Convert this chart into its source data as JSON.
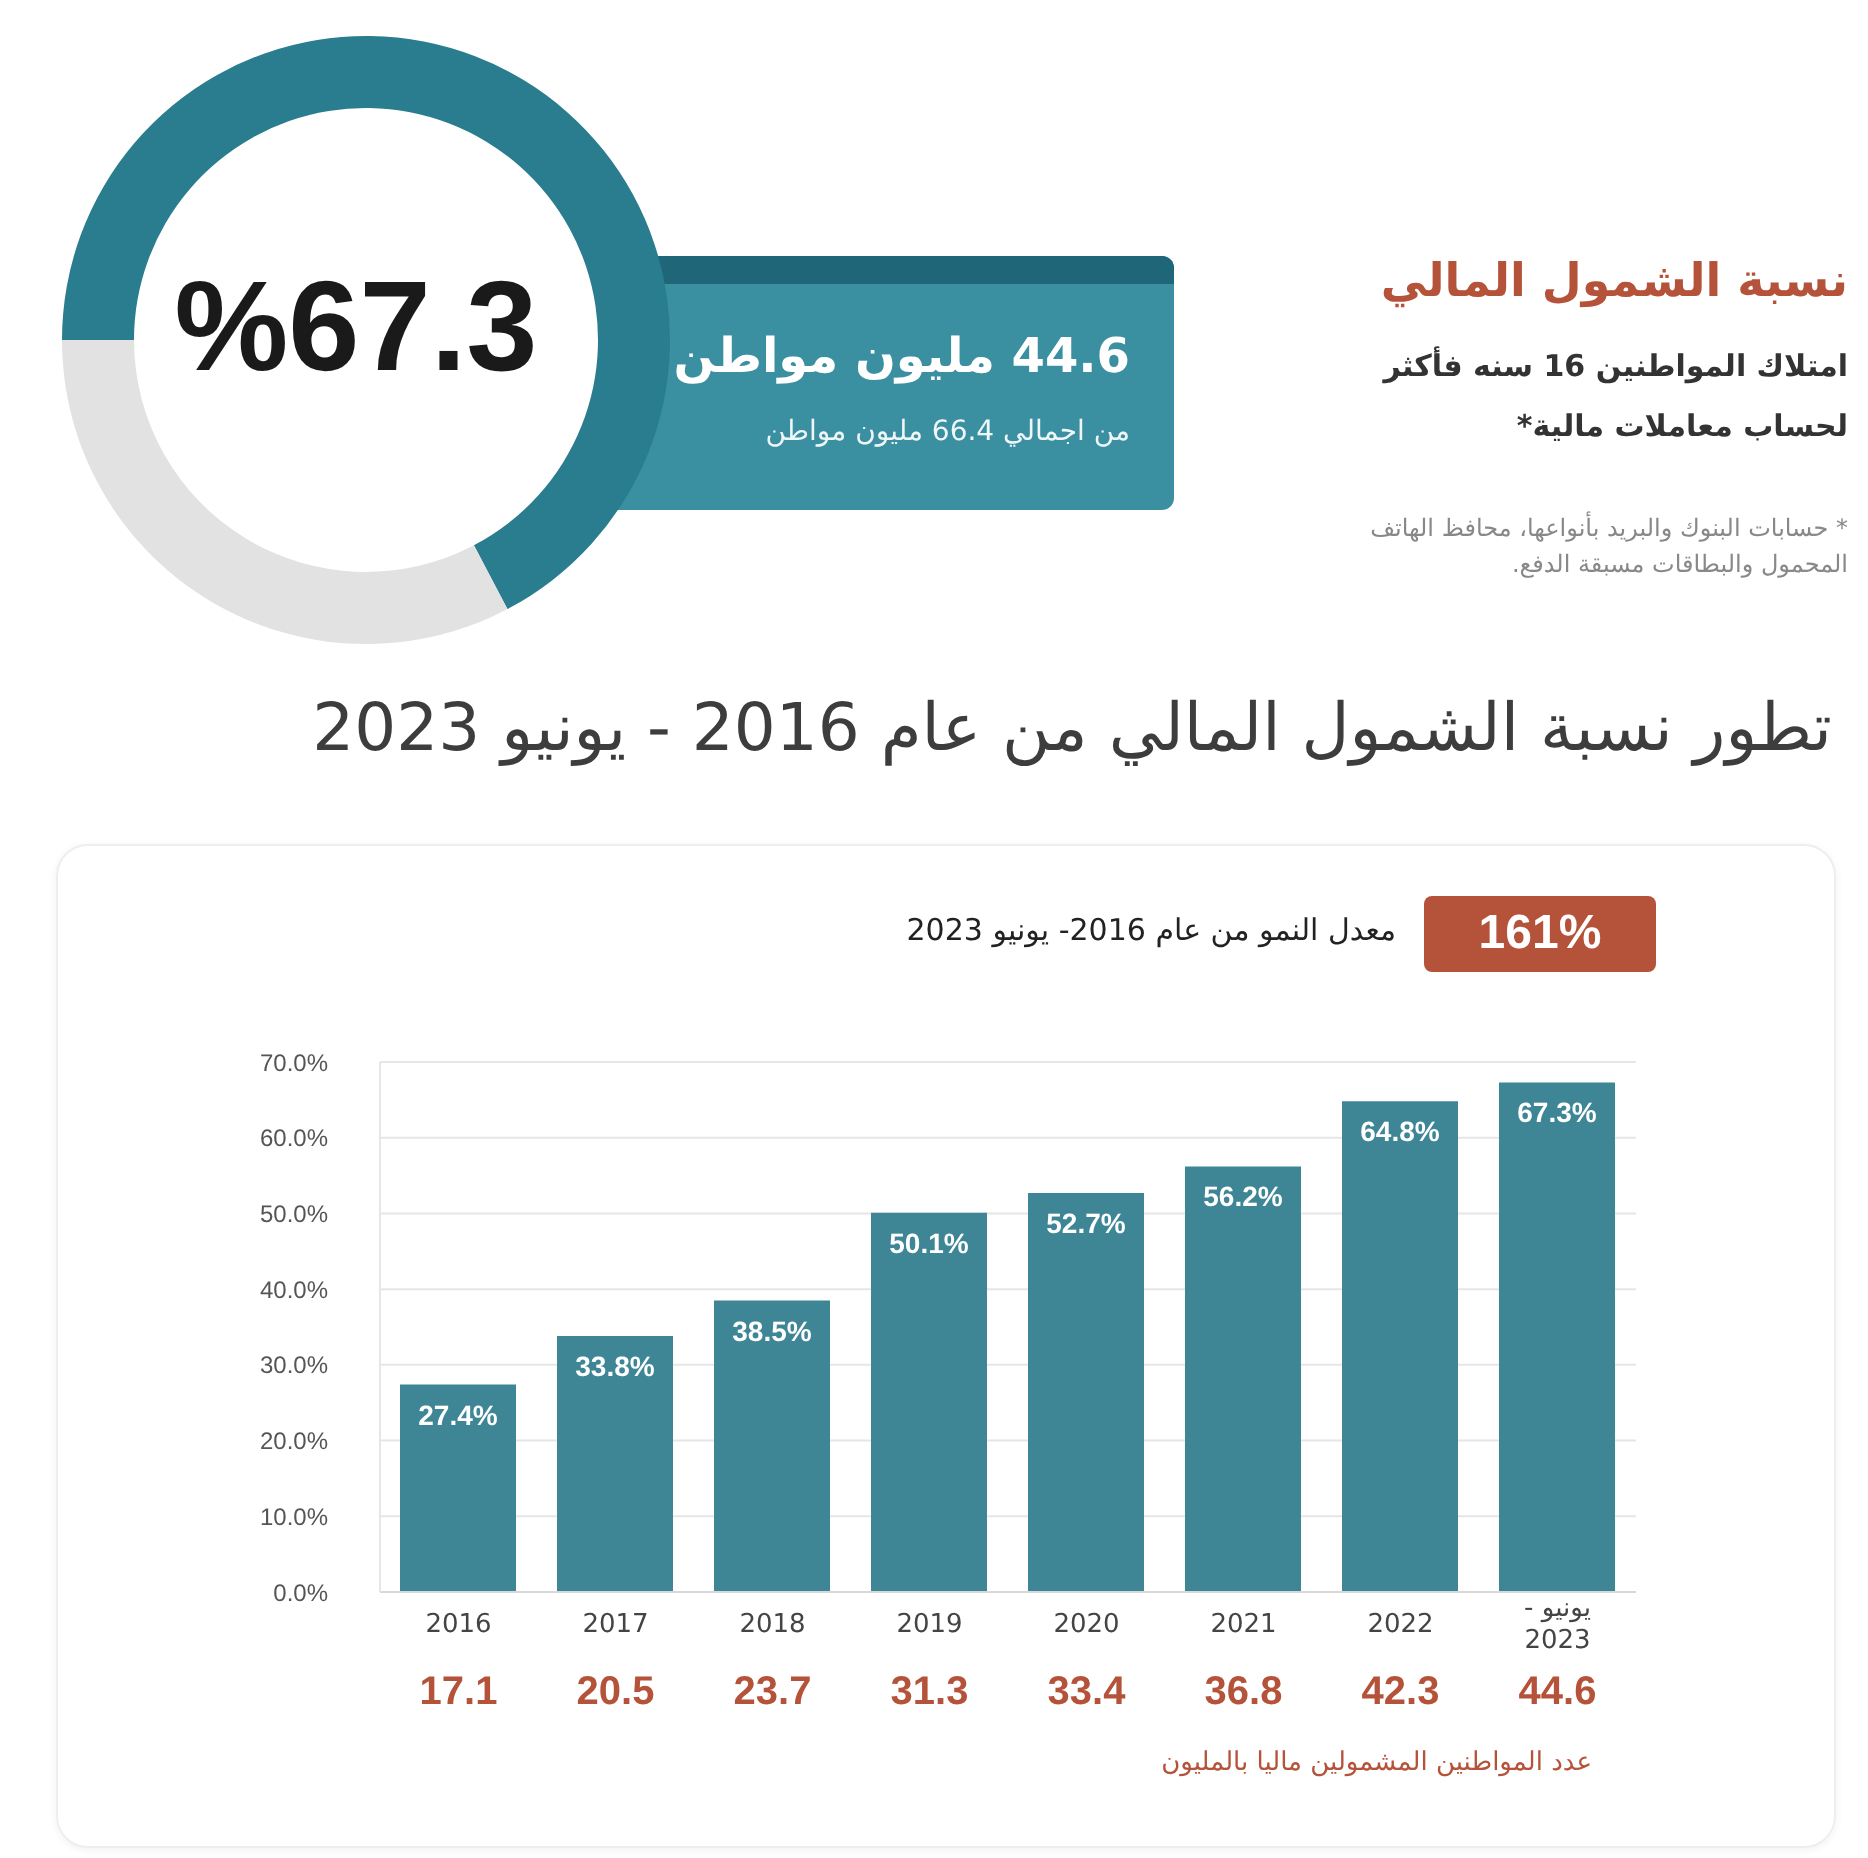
{
  "chart_data": [
    {
      "type": "donut",
      "categories": [
        null,
        null
      ],
      "values": [
        67.3,
        32.7
      ],
      "colors": [
        "#2a7d8e",
        "#e2e2e2"
      ],
      "value_labels": [
        "%67.3",
        null
      ],
      "annotations": [
        "44.6 مليون مواطن",
        "من اجمالي 66.4 مليون مواطن"
      ]
    },
    {
      "type": "other",
      "title": "نسبة الشمول المالي",
      "subtitle": "امتلاك المواطنين 16 سنه فأكثر لحساب معاملات مالية*",
      "annotations": [
        "* حسابات البنوك والبريد بأنواعها، محافظ الهاتف المحمول والبطاقات مسبقة الدفع."
      ]
    },
    {
      "type": "bar",
      "title": "تطور نسبة الشمول المالي من عام 2016 - يونيو 2023",
      "subtitle": "معدل النمو من عام 2016- يونيو 2023",
      "categories": [
        "2016",
        "2017",
        "2018",
        "2019",
        "2020",
        "2021",
        "2022",
        "يونيو - 2023"
      ],
      "values": [
        27.4,
        33.8,
        38.5,
        50.1,
        52.7,
        56.2,
        64.8,
        67.3
      ],
      "value_labels": [
        "27.4%",
        "33.8%",
        "38.5%",
        "50.1%",
        "52.7%",
        "56.2%",
        "64.8%",
        "67.3%"
      ],
      "color": "#3e8595",
      "ylim": [
        0,
        70
      ],
      "yticks": [
        {
          "value": 0,
          "label": "0.0%"
        },
        {
          "value": 10,
          "label": "10.0%"
        },
        {
          "value": 20,
          "label": "20.0%"
        },
        {
          "value": 30,
          "label": "30.0%"
        },
        {
          "value": 40,
          "label": "40.0%"
        },
        {
          "value": 50,
          "label": "50.0%"
        },
        {
          "value": 60,
          "label": "60.0%"
        },
        {
          "value": 70,
          "label": "70.0%"
        }
      ],
      "grid": "y",
      "annotations": [
        "161%",
        "17.1",
        "20.5",
        "23.7",
        "31.3",
        "33.4",
        "36.8",
        "42.3",
        "44.6",
        "عدد المواطنين المشمولين ماليا بالمليون"
      ]
    }
  ]
}
